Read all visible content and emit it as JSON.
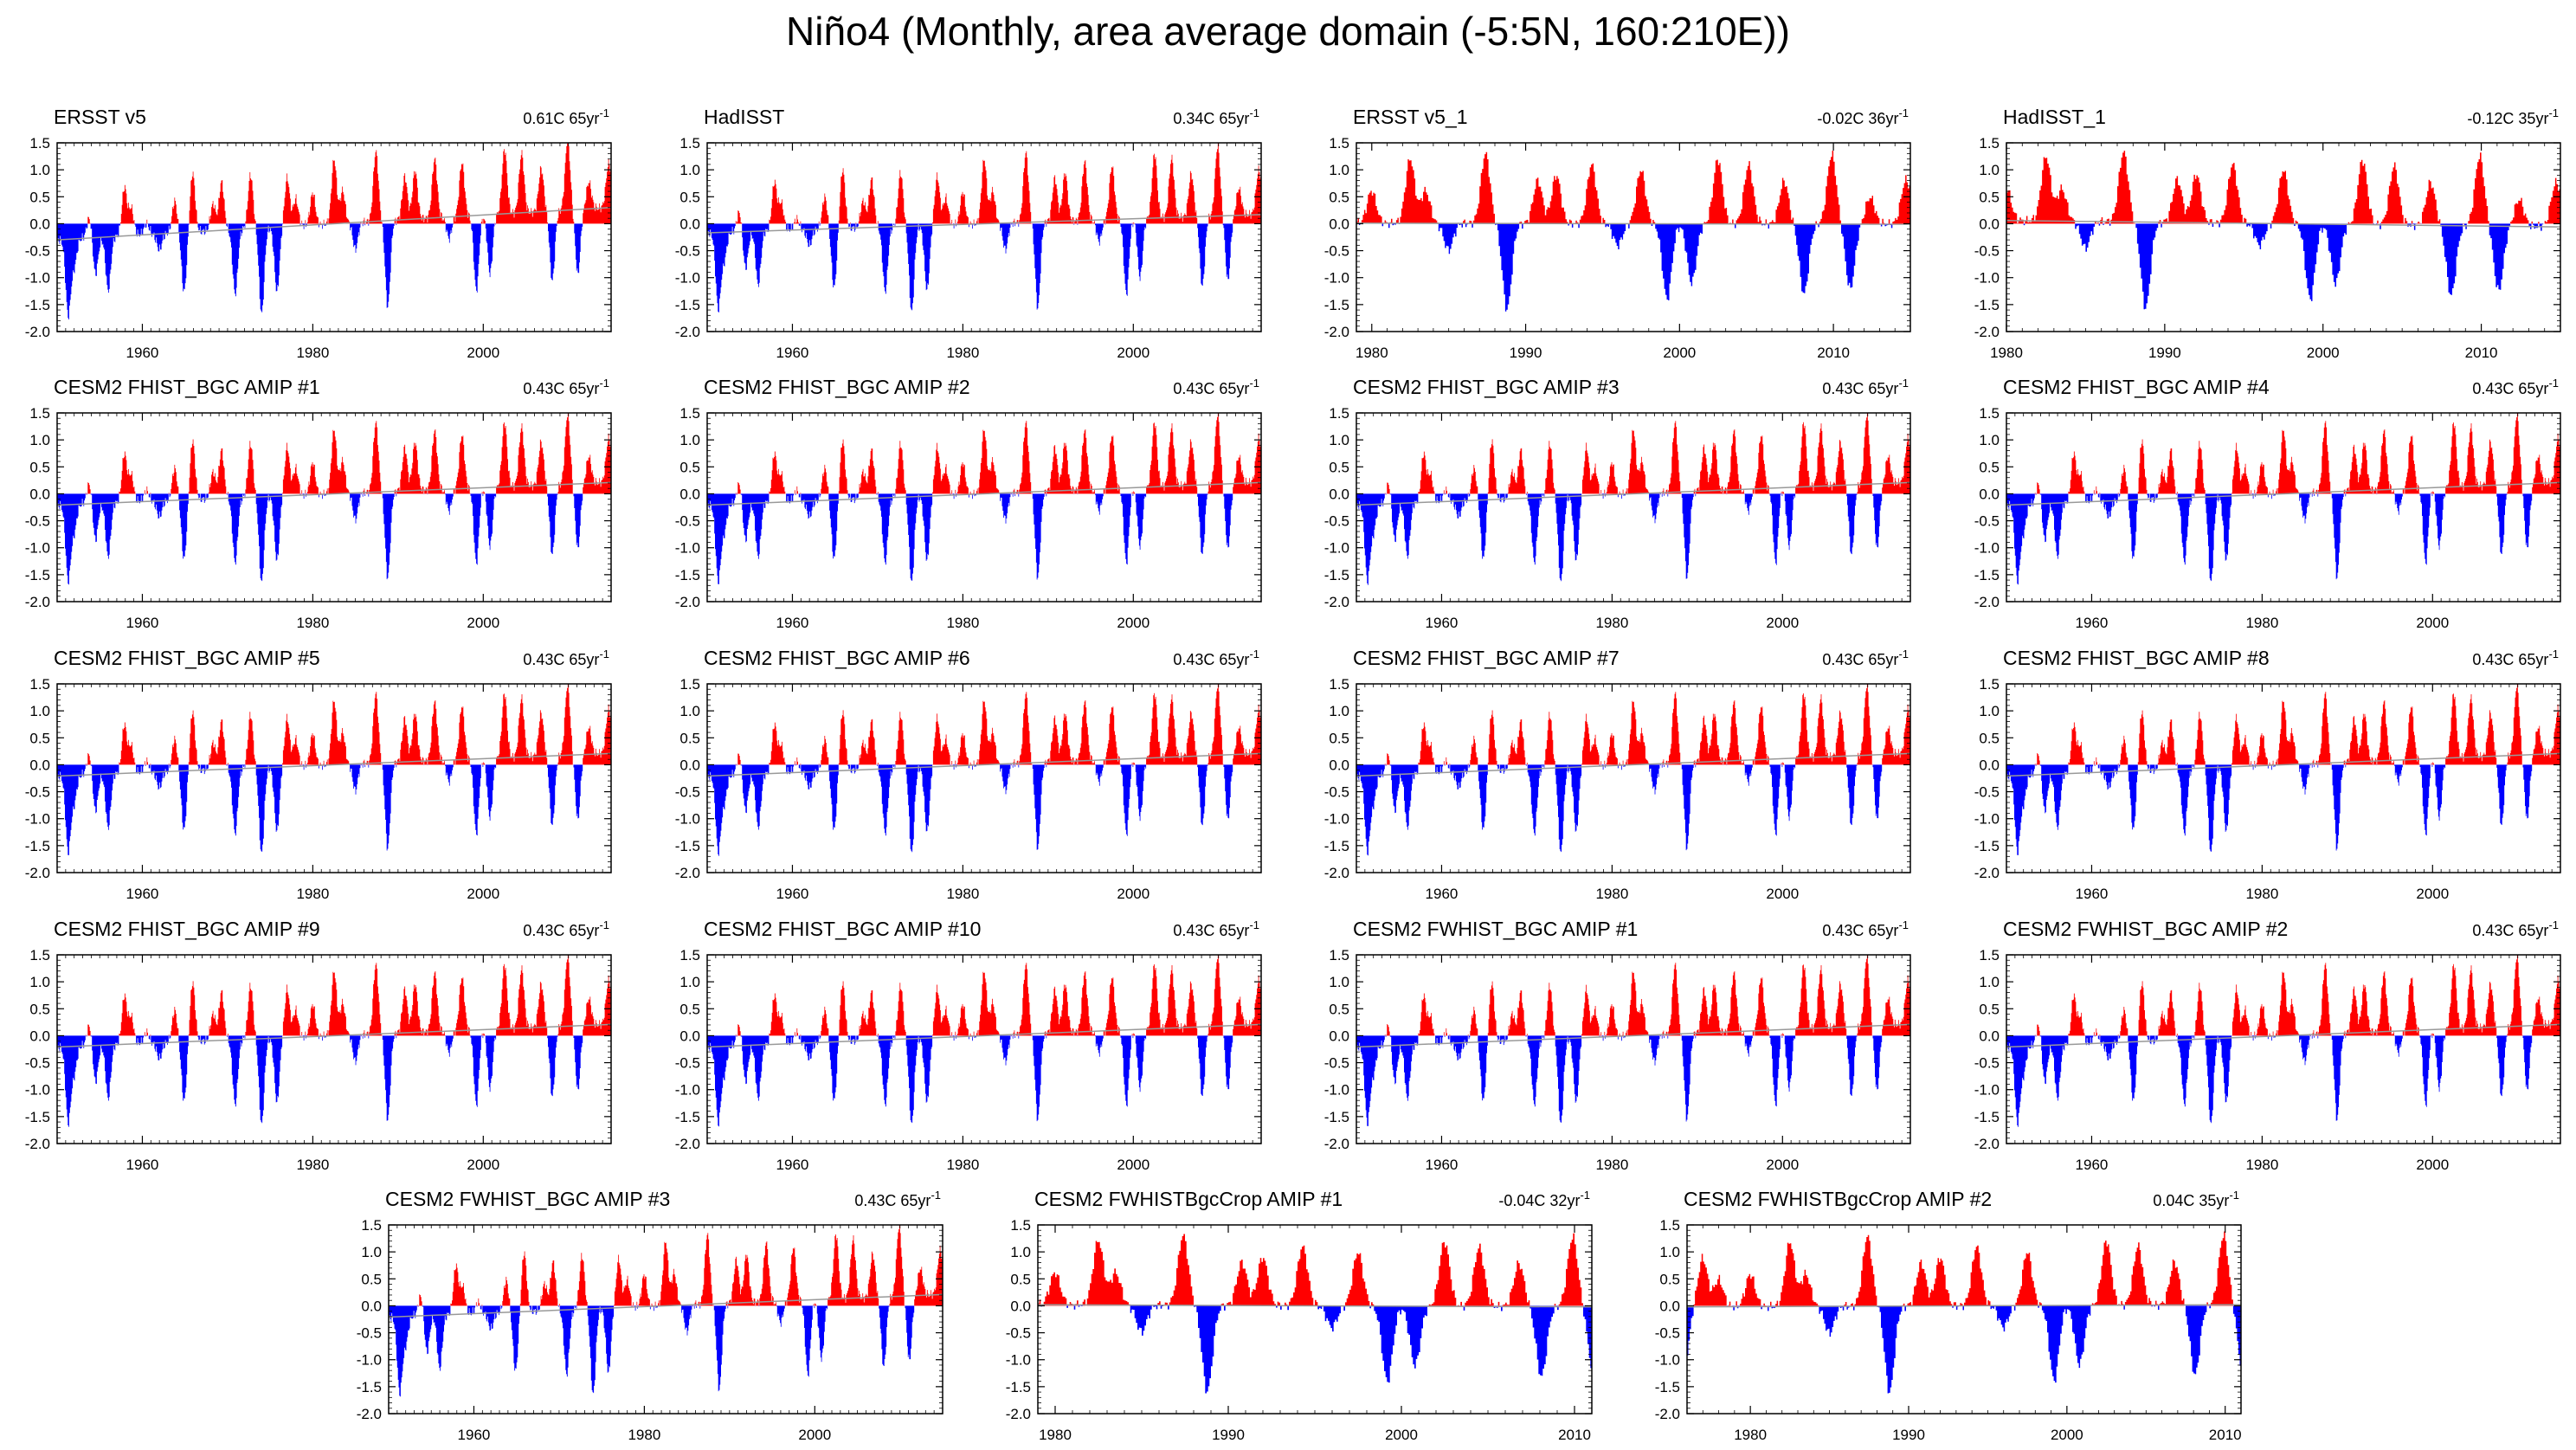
{
  "title": "Niño4 (Monthly, area average domain (-5:5N, 160:210E))",
  "colors": {
    "positive": "#ff0000",
    "negative": "#0000ff",
    "trend": "#999999",
    "axis": "#000000"
  },
  "chart_data": [
    {
      "type": "area",
      "title": "ERSST v5",
      "trend": "0.61C 65yr",
      "trend_exp": "-1",
      "x_range": [
        1950,
        2015
      ],
      "x_ticks": [
        1960,
        1980,
        2000
      ],
      "ylim": [
        -2.0,
        1.5
      ],
      "y_ticks": [
        "1.5",
        "1.0",
        "0.5",
        "0.0",
        "-0.5",
        "-1.0",
        "-1.5",
        "-2.0"
      ],
      "trend_line": [
        -0.3,
        0.3
      ]
    },
    {
      "type": "area",
      "title": "HadISST",
      "trend": "0.34C 65yr",
      "trend_exp": "-1",
      "x_range": [
        1950,
        2015
      ],
      "x_ticks": [
        1960,
        1980,
        2000
      ],
      "ylim": [
        -2.0,
        1.5
      ],
      "y_ticks": [
        "1.5",
        "1.0",
        "0.5",
        "0.0",
        "-0.5",
        "-1.0",
        "-1.5",
        "-2.0"
      ],
      "trend_line": [
        -0.17,
        0.17
      ]
    },
    {
      "type": "area",
      "title": "ERSST v5_1",
      "trend": "-0.02C 36yr",
      "trend_exp": "-1",
      "x_range": [
        1979,
        2015
      ],
      "x_ticks": [
        1980,
        1990,
        2000,
        2010
      ],
      "ylim": [
        -2.0,
        1.5
      ],
      "y_ticks": [
        "1.5",
        "1.0",
        "0.5",
        "0.0",
        "-0.5",
        "-1.0",
        "-1.5",
        "-2.0"
      ],
      "trend_line": [
        0.01,
        -0.01
      ]
    },
    {
      "type": "area",
      "title": "HadISST_1",
      "trend": "-0.12C 35yr",
      "trend_exp": "-1",
      "x_range": [
        1980,
        2015
      ],
      "x_ticks": [
        1980,
        1990,
        2000,
        2010
      ],
      "ylim": [
        -2.0,
        1.5
      ],
      "y_ticks": [
        "1.5",
        "1.0",
        "0.5",
        "0.0",
        "-0.5",
        "-1.0",
        "-1.5",
        "-2.0"
      ],
      "trend_line": [
        0.06,
        -0.06
      ]
    },
    {
      "type": "area",
      "title": "CESM2 FHIST_BGC AMIP #1",
      "trend": "0.43C 65yr",
      "trend_exp": "-1",
      "x_range": [
        1950,
        2015
      ],
      "x_ticks": [
        1960,
        1980,
        2000
      ],
      "ylim": [
        -2.0,
        1.5
      ],
      "y_ticks": [
        "1.5",
        "1.0",
        "0.5",
        "0.0",
        "-0.5",
        "-1.0",
        "-1.5",
        "-2.0"
      ],
      "trend_line": [
        -0.21,
        0.21
      ]
    },
    {
      "type": "area",
      "title": "CESM2 FHIST_BGC AMIP #2",
      "trend": "0.43C 65yr",
      "trend_exp": "-1",
      "x_range": [
        1950,
        2015
      ],
      "x_ticks": [
        1960,
        1980,
        2000
      ],
      "ylim": [
        -2.0,
        1.5
      ],
      "y_ticks": [
        "1.5",
        "1.0",
        "0.5",
        "0.0",
        "-0.5",
        "-1.0",
        "-1.5",
        "-2.0"
      ],
      "trend_line": [
        -0.21,
        0.21
      ]
    },
    {
      "type": "area",
      "title": "CESM2 FHIST_BGC AMIP #3",
      "trend": "0.43C 65yr",
      "trend_exp": "-1",
      "x_range": [
        1950,
        2015
      ],
      "x_ticks": [
        1960,
        1980,
        2000
      ],
      "ylim": [
        -2.0,
        1.5
      ],
      "y_ticks": [
        "1.5",
        "1.0",
        "0.5",
        "0.0",
        "-0.5",
        "-1.0",
        "-1.5",
        "-2.0"
      ],
      "trend_line": [
        -0.21,
        0.21
      ]
    },
    {
      "type": "area",
      "title": "CESM2 FHIST_BGC AMIP #4",
      "trend": "0.43C 65yr",
      "trend_exp": "-1",
      "x_range": [
        1950,
        2015
      ],
      "x_ticks": [
        1960,
        1980,
        2000
      ],
      "ylim": [
        -2.0,
        1.5
      ],
      "y_ticks": [
        "1.5",
        "1.0",
        "0.5",
        "0.0",
        "-0.5",
        "-1.0",
        "-1.5",
        "-2.0"
      ],
      "trend_line": [
        -0.21,
        0.21
      ]
    },
    {
      "type": "area",
      "title": "CESM2 FHIST_BGC AMIP #5",
      "trend": "0.43C 65yr",
      "trend_exp": "-1",
      "x_range": [
        1950,
        2015
      ],
      "x_ticks": [
        1960,
        1980,
        2000
      ],
      "ylim": [
        -2.0,
        1.5
      ],
      "y_ticks": [
        "1.5",
        "1.0",
        "0.5",
        "0.0",
        "-0.5",
        "-1.0",
        "-1.5",
        "-2.0"
      ],
      "trend_line": [
        -0.21,
        0.21
      ]
    },
    {
      "type": "area",
      "title": "CESM2 FHIST_BGC AMIP #6",
      "trend": "0.43C 65yr",
      "trend_exp": "-1",
      "x_range": [
        1950,
        2015
      ],
      "x_ticks": [
        1960,
        1980,
        2000
      ],
      "ylim": [
        -2.0,
        1.5
      ],
      "y_ticks": [
        "1.5",
        "1.0",
        "0.5",
        "0.0",
        "-0.5",
        "-1.0",
        "-1.5",
        "-2.0"
      ],
      "trend_line": [
        -0.21,
        0.21
      ]
    },
    {
      "type": "area",
      "title": "CESM2 FHIST_BGC AMIP #7",
      "trend": "0.43C 65yr",
      "trend_exp": "-1",
      "x_range": [
        1950,
        2015
      ],
      "x_ticks": [
        1960,
        1980,
        2000
      ],
      "ylim": [
        -2.0,
        1.5
      ],
      "y_ticks": [
        "1.5",
        "1.0",
        "0.5",
        "0.0",
        "-0.5",
        "-1.0",
        "-1.5",
        "-2.0"
      ],
      "trend_line": [
        -0.21,
        0.21
      ]
    },
    {
      "type": "area",
      "title": "CESM2 FHIST_BGC AMIP #8",
      "trend": "0.43C 65yr",
      "trend_exp": "-1",
      "x_range": [
        1950,
        2015
      ],
      "x_ticks": [
        1960,
        1980,
        2000
      ],
      "ylim": [
        -2.0,
        1.5
      ],
      "y_ticks": [
        "1.5",
        "1.0",
        "0.5",
        "0.0",
        "-0.5",
        "-1.0",
        "-1.5",
        "-2.0"
      ],
      "trend_line": [
        -0.21,
        0.21
      ]
    },
    {
      "type": "area",
      "title": "CESM2 FHIST_BGC AMIP #9",
      "trend": "0.43C 65yr",
      "trend_exp": "-1",
      "x_range": [
        1950,
        2015
      ],
      "x_ticks": [
        1960,
        1980,
        2000
      ],
      "ylim": [
        -2.0,
        1.5
      ],
      "y_ticks": [
        "1.5",
        "1.0",
        "0.5",
        "0.0",
        "-0.5",
        "-1.0",
        "-1.5",
        "-2.0"
      ],
      "trend_line": [
        -0.21,
        0.21
      ]
    },
    {
      "type": "area",
      "title": "CESM2 FHIST_BGC AMIP #10",
      "trend": "0.43C 65yr",
      "trend_exp": "-1",
      "x_range": [
        1950,
        2015
      ],
      "x_ticks": [
        1960,
        1980,
        2000
      ],
      "ylim": [
        -2.0,
        1.5
      ],
      "y_ticks": [
        "1.5",
        "1.0",
        "0.5",
        "0.0",
        "-0.5",
        "-1.0",
        "-1.5",
        "-2.0"
      ],
      "trend_line": [
        -0.21,
        0.21
      ]
    },
    {
      "type": "area",
      "title": "CESM2 FWHIST_BGC AMIP #1",
      "trend": "0.43C 65yr",
      "trend_exp": "-1",
      "x_range": [
        1950,
        2015
      ],
      "x_ticks": [
        1960,
        1980,
        2000
      ],
      "ylim": [
        -2.0,
        1.5
      ],
      "y_ticks": [
        "1.5",
        "1.0",
        "0.5",
        "0.0",
        "-0.5",
        "-1.0",
        "-1.5",
        "-2.0"
      ],
      "trend_line": [
        -0.21,
        0.21
      ]
    },
    {
      "type": "area",
      "title": "CESM2 FWHIST_BGC AMIP #2",
      "trend": "0.43C 65yr",
      "trend_exp": "-1",
      "x_range": [
        1950,
        2015
      ],
      "x_ticks": [
        1960,
        1980,
        2000
      ],
      "ylim": [
        -2.0,
        1.5
      ],
      "y_ticks": [
        "1.5",
        "1.0",
        "0.5",
        "0.0",
        "-0.5",
        "-1.0",
        "-1.5",
        "-2.0"
      ],
      "trend_line": [
        -0.21,
        0.21
      ]
    },
    {
      "type": "area",
      "title": "CESM2 FWHIST_BGC AMIP #3",
      "trend": "0.43C 65yr",
      "trend_exp": "-1",
      "x_range": [
        1950,
        2015
      ],
      "x_ticks": [
        1960,
        1980,
        2000
      ],
      "ylim": [
        -2.0,
        1.5
      ],
      "y_ticks": [
        "1.5",
        "1.0",
        "0.5",
        "0.0",
        "-0.5",
        "-1.0",
        "-1.5",
        "-2.0"
      ],
      "trend_line": [
        -0.21,
        0.21
      ]
    },
    {
      "type": "area",
      "title": "CESM2 FWHISTBgcCrop AMIP #1",
      "trend": "-0.04C 32yr",
      "trend_exp": "-1",
      "x_range": [
        1979,
        2011
      ],
      "x_ticks": [
        1980,
        1990,
        2000,
        2010
      ],
      "ylim": [
        -2.0,
        1.5
      ],
      "y_ticks": [
        "1.5",
        "1.0",
        "0.5",
        "0.0",
        "-0.5",
        "-1.0",
        "-1.5",
        "-2.0"
      ],
      "trend_line": [
        0.02,
        -0.02
      ]
    },
    {
      "type": "area",
      "title": "CESM2 FWHISTBgcCrop AMIP #2",
      "trend": "0.04C 35yr",
      "trend_exp": "-1",
      "x_range": [
        1976,
        2011
      ],
      "x_ticks": [
        1980,
        1990,
        2000,
        2010
      ],
      "ylim": [
        -2.0,
        1.5
      ],
      "y_ticks": [
        "1.5",
        "1.0",
        "0.5",
        "0.0",
        "-0.5",
        "-1.0",
        "-1.5",
        "-2.0"
      ],
      "trend_line": [
        -0.02,
        0.02
      ]
    }
  ]
}
